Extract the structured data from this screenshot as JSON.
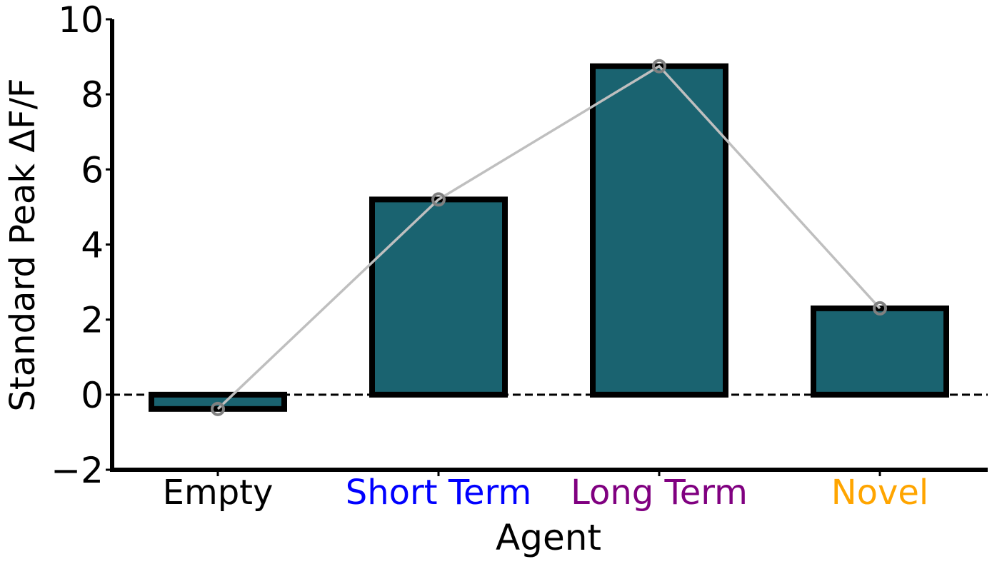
{
  "chart_data": {
    "type": "bar",
    "xlabel": "Agent",
    "ylabel": "Standard Peak ΔF/F",
    "ylim": [
      -2,
      10
    ],
    "yticks": [
      -2,
      0,
      2,
      4,
      6,
      8,
      10
    ],
    "ytick_labels": [
      "−2",
      "0",
      "2",
      "4",
      "6",
      "8",
      "10"
    ],
    "categories": [
      "Empty",
      "Short Term",
      "Long Term",
      "Novel"
    ],
    "category_colors": [
      "#000000",
      "#0000ff",
      "#800080",
      "#ffa500"
    ],
    "values": [
      -0.38,
      5.2,
      8.75,
      2.3
    ],
    "bar_color": "#1a6370",
    "bar_edge_color": "#000000",
    "line_color": "#bfbfbf",
    "marker_color": "#808080",
    "reference_line": {
      "y": 0,
      "style": "dashed",
      "color": "#000000"
    },
    "grid": false
  }
}
